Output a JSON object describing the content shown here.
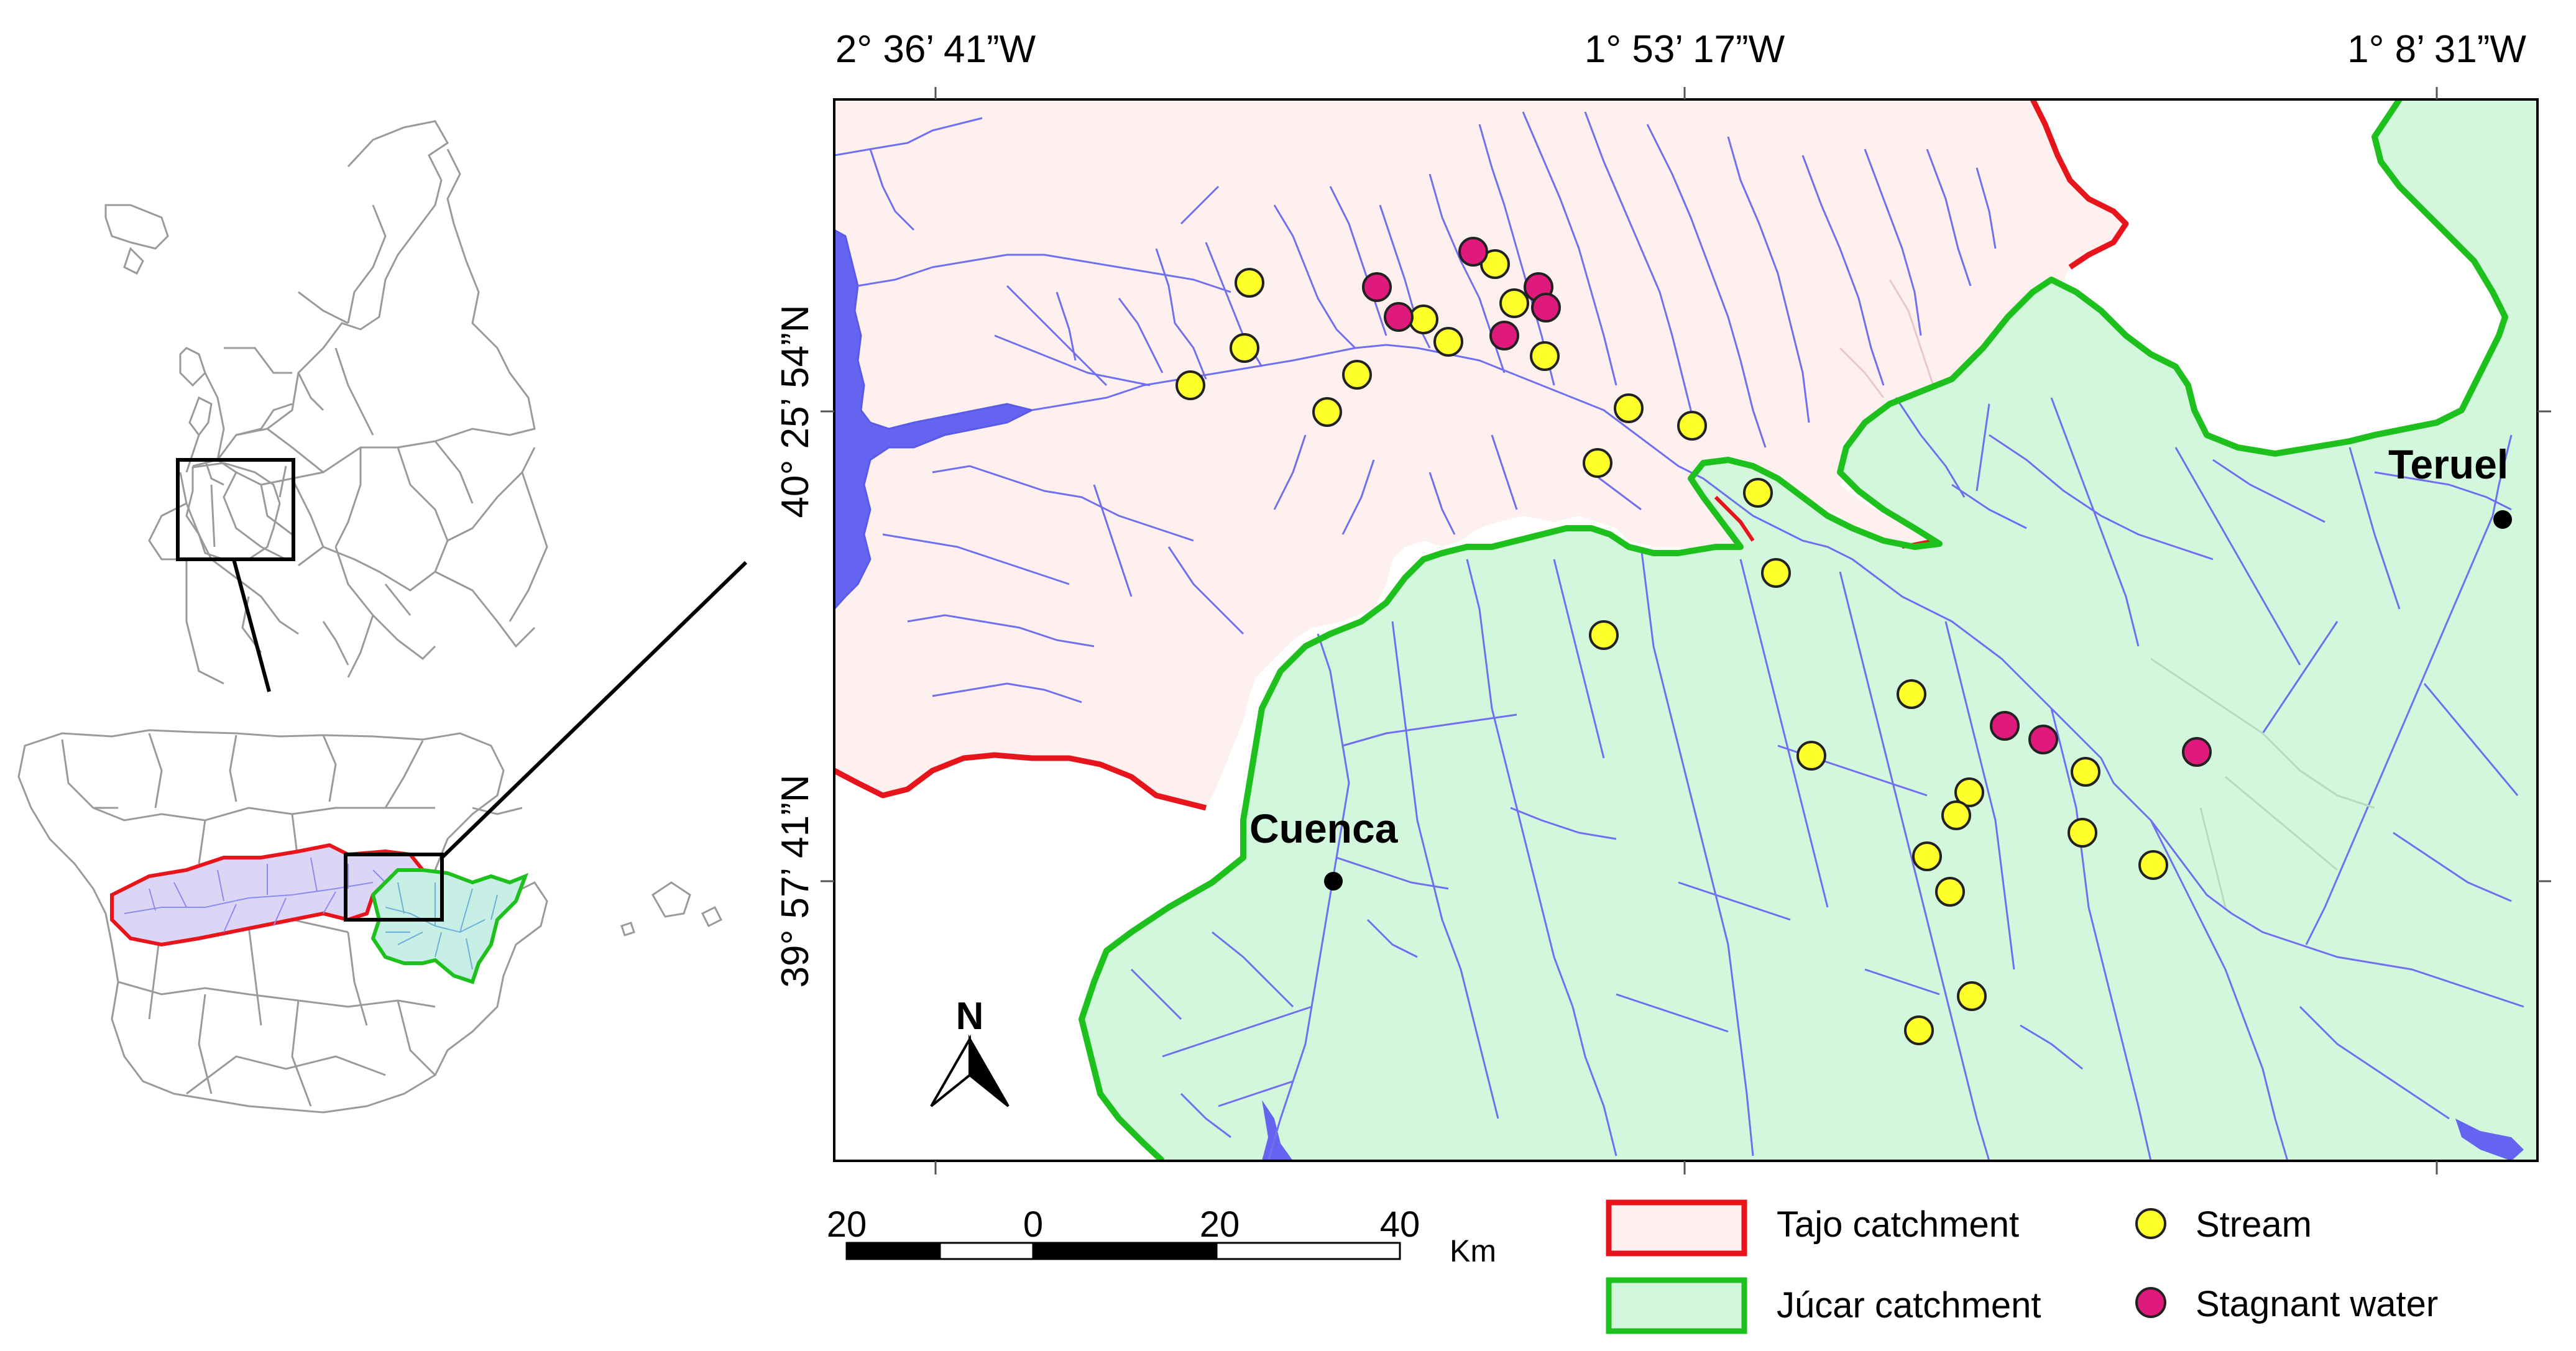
{
  "map": {
    "coordinates": {
      "top_labels": [
        "2° 36’ 41”W",
        "1° 53’ 17”W",
        "1° 8’ 31”W"
      ],
      "side_labels": [
        "40° 25’ 54”N",
        "39° 57’ 41”N"
      ]
    },
    "places": [
      {
        "name": "Cuenca"
      },
      {
        "name": "Teruel"
      }
    ],
    "north_label": "N",
    "scale_bar": {
      "labels": [
        "20",
        "0",
        "20",
        "40"
      ],
      "unit": "Km"
    },
    "legend": {
      "items": [
        {
          "label": "Tajo catchment",
          "symbol": "box",
          "fill": "#fff0f0",
          "stroke": "#e8141b"
        },
        {
          "label": "Júcar catchment",
          "symbol": "box",
          "fill": "#d3f7dc",
          "stroke": "#1dc01d"
        },
        {
          "label": "Stream",
          "symbol": "dot",
          "fill": "#ffff2a",
          "stroke": "#222222"
        },
        {
          "label": "Stagnant water",
          "symbol": "dot",
          "fill": "#e0197c",
          "stroke": "#222222"
        }
      ]
    },
    "colors": {
      "tajo_fill": "#fff0f0",
      "tajo_border": "#e8141b",
      "jucar_fill": "#d3f7dc",
      "jucar_border": "#1dc01d",
      "river": "#6f6ff0",
      "reservoir": "#6464f0"
    }
  }
}
